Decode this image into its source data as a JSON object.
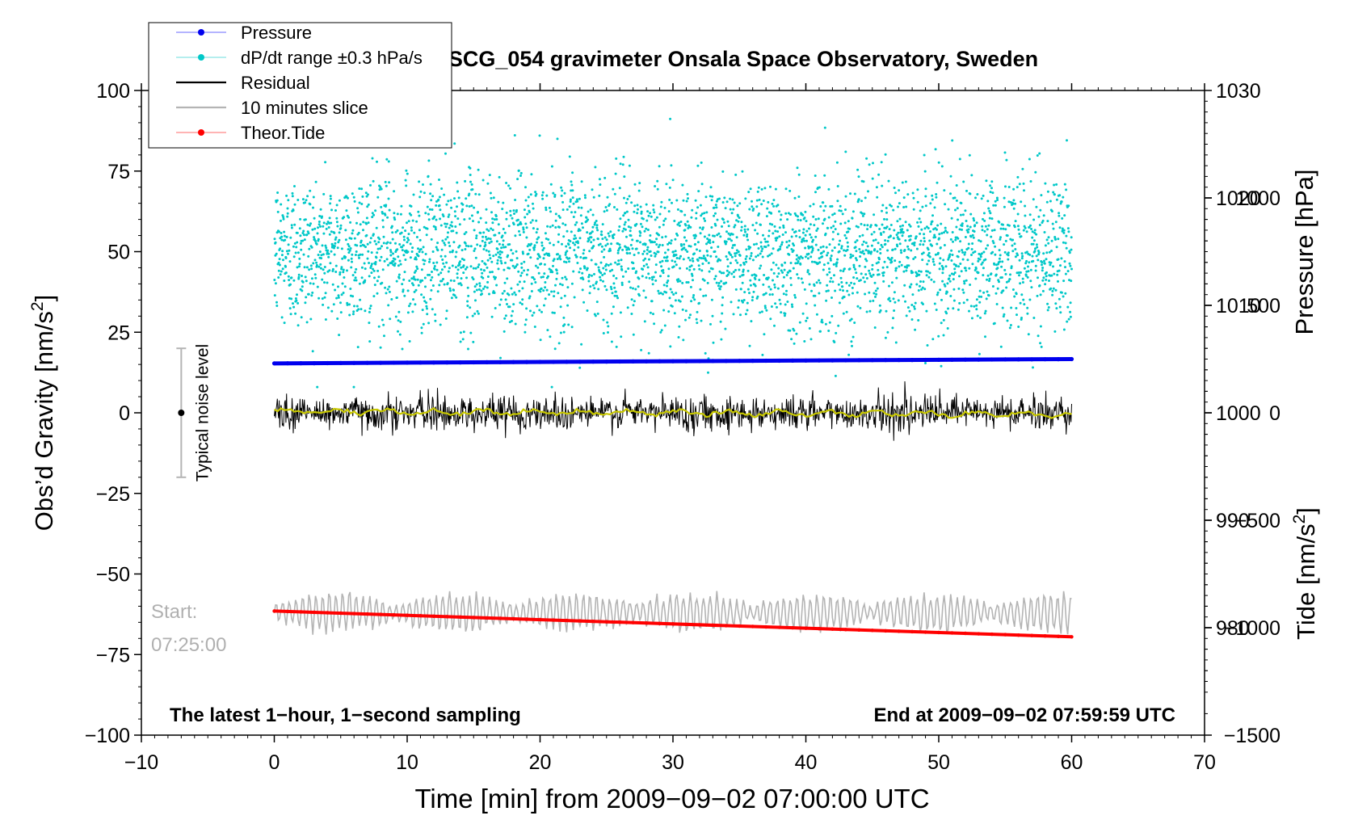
{
  "chart_data": {
    "type": "scatter",
    "title": "SCG_054 gravimeter Onsala Space Observatory, Sweden",
    "xlabel": "Time [min] from 2009−09−02 07:00:00 UTC",
    "ylabel_left": "Obs’d Gravity [nm/s²]",
    "ylabel_left_text": "Obs’d Gravity [nm/s",
    "ylabel_left_sup": "2",
    "ylabel_left_end": "]",
    "ylabel_right_top": "Pressure [hPa]",
    "ylabel_right_bottom": "Tide [nm/s²]",
    "ylabel_right_bottom_text": "Tide [nm/s",
    "ylabel_right_bottom_sup": "2",
    "ylabel_right_bottom_end": "]",
    "xlim": [
      -10,
      70
    ],
    "ylim": [
      -100,
      100
    ],
    "pressure_lim": [
      970,
      1030
    ],
    "tide_lim": [
      -1500,
      1500
    ],
    "x_ticks": [
      -10,
      0,
      10,
      20,
      30,
      40,
      50,
      60,
      70
    ],
    "x_tick_labels": [
      "−10",
      "0",
      "10",
      "20",
      "30",
      "40",
      "50",
      "60",
      "70"
    ],
    "y_ticks": [
      -100,
      -75,
      -50,
      -25,
      0,
      25,
      50,
      75,
      100
    ],
    "y_tick_labels": [
      "−100",
      "−75",
      "−50",
      "−25",
      "0",
      "25",
      "50",
      "75",
      "100"
    ],
    "pressure_ticks": [
      980,
      990,
      1000,
      1010,
      1020,
      1030
    ],
    "pressure_tick_labels": [
      "980",
      "990",
      "1000",
      "1010",
      "1020",
      "1030"
    ],
    "tide_ticks": [
      -1500,
      -1000,
      -500,
      0,
      500,
      1000
    ],
    "tide_tick_labels": [
      "−1500",
      "−1000",
      "−500",
      "0",
      "500",
      "1000"
    ],
    "legend": [
      "Pressure",
      "dP/dt range ±0.3 hPa/s",
      "Residual",
      "10 minutes slice",
      "Theor.Tide"
    ],
    "legend_position": "top-left",
    "series": [
      {
        "name": "Pressure",
        "axis": "pressure",
        "color": "#0000ee",
        "x": [
          0,
          60
        ],
        "values": [
          1004.6,
          1005.0
        ]
      },
      {
        "name": "dP/dt range ±0.3 hPa/s",
        "axis": "gravity",
        "color": "#00c8c8",
        "x_range": [
          0,
          60
        ],
        "center": 50,
        "spread": 12,
        "n": 3600
      },
      {
        "name": "Residual",
        "axis": "gravity",
        "color": "#000000",
        "x_range": [
          0,
          60
        ],
        "center": 0,
        "amplitude": 3
      },
      {
        "name": "Residual smoothed",
        "axis": "gravity",
        "color": "#c8c800",
        "x": [
          0,
          60
        ],
        "values": [
          0.5,
          -0.5
        ]
      },
      {
        "name": "10 minutes slice",
        "axis": "gravity",
        "color": "#b4b4b4",
        "x_range": [
          0,
          60
        ],
        "center": -62,
        "amplitude": 5
      },
      {
        "name": "Theor.Tide",
        "axis": "gravity",
        "color": "#ff0000",
        "x": [
          0,
          60
        ],
        "values": [
          -61.5,
          -69.5
        ]
      }
    ],
    "annotations": {
      "noise_label": "Typical noise level",
      "noise_x": -7,
      "noise_range": [
        -20,
        20
      ],
      "start_label": "Start:",
      "start_time": "07:25:00",
      "latest_label": "The latest 1−hour, 1−second sampling",
      "end_label": "End at 2009−09−02 07:59:59 UTC"
    }
  }
}
